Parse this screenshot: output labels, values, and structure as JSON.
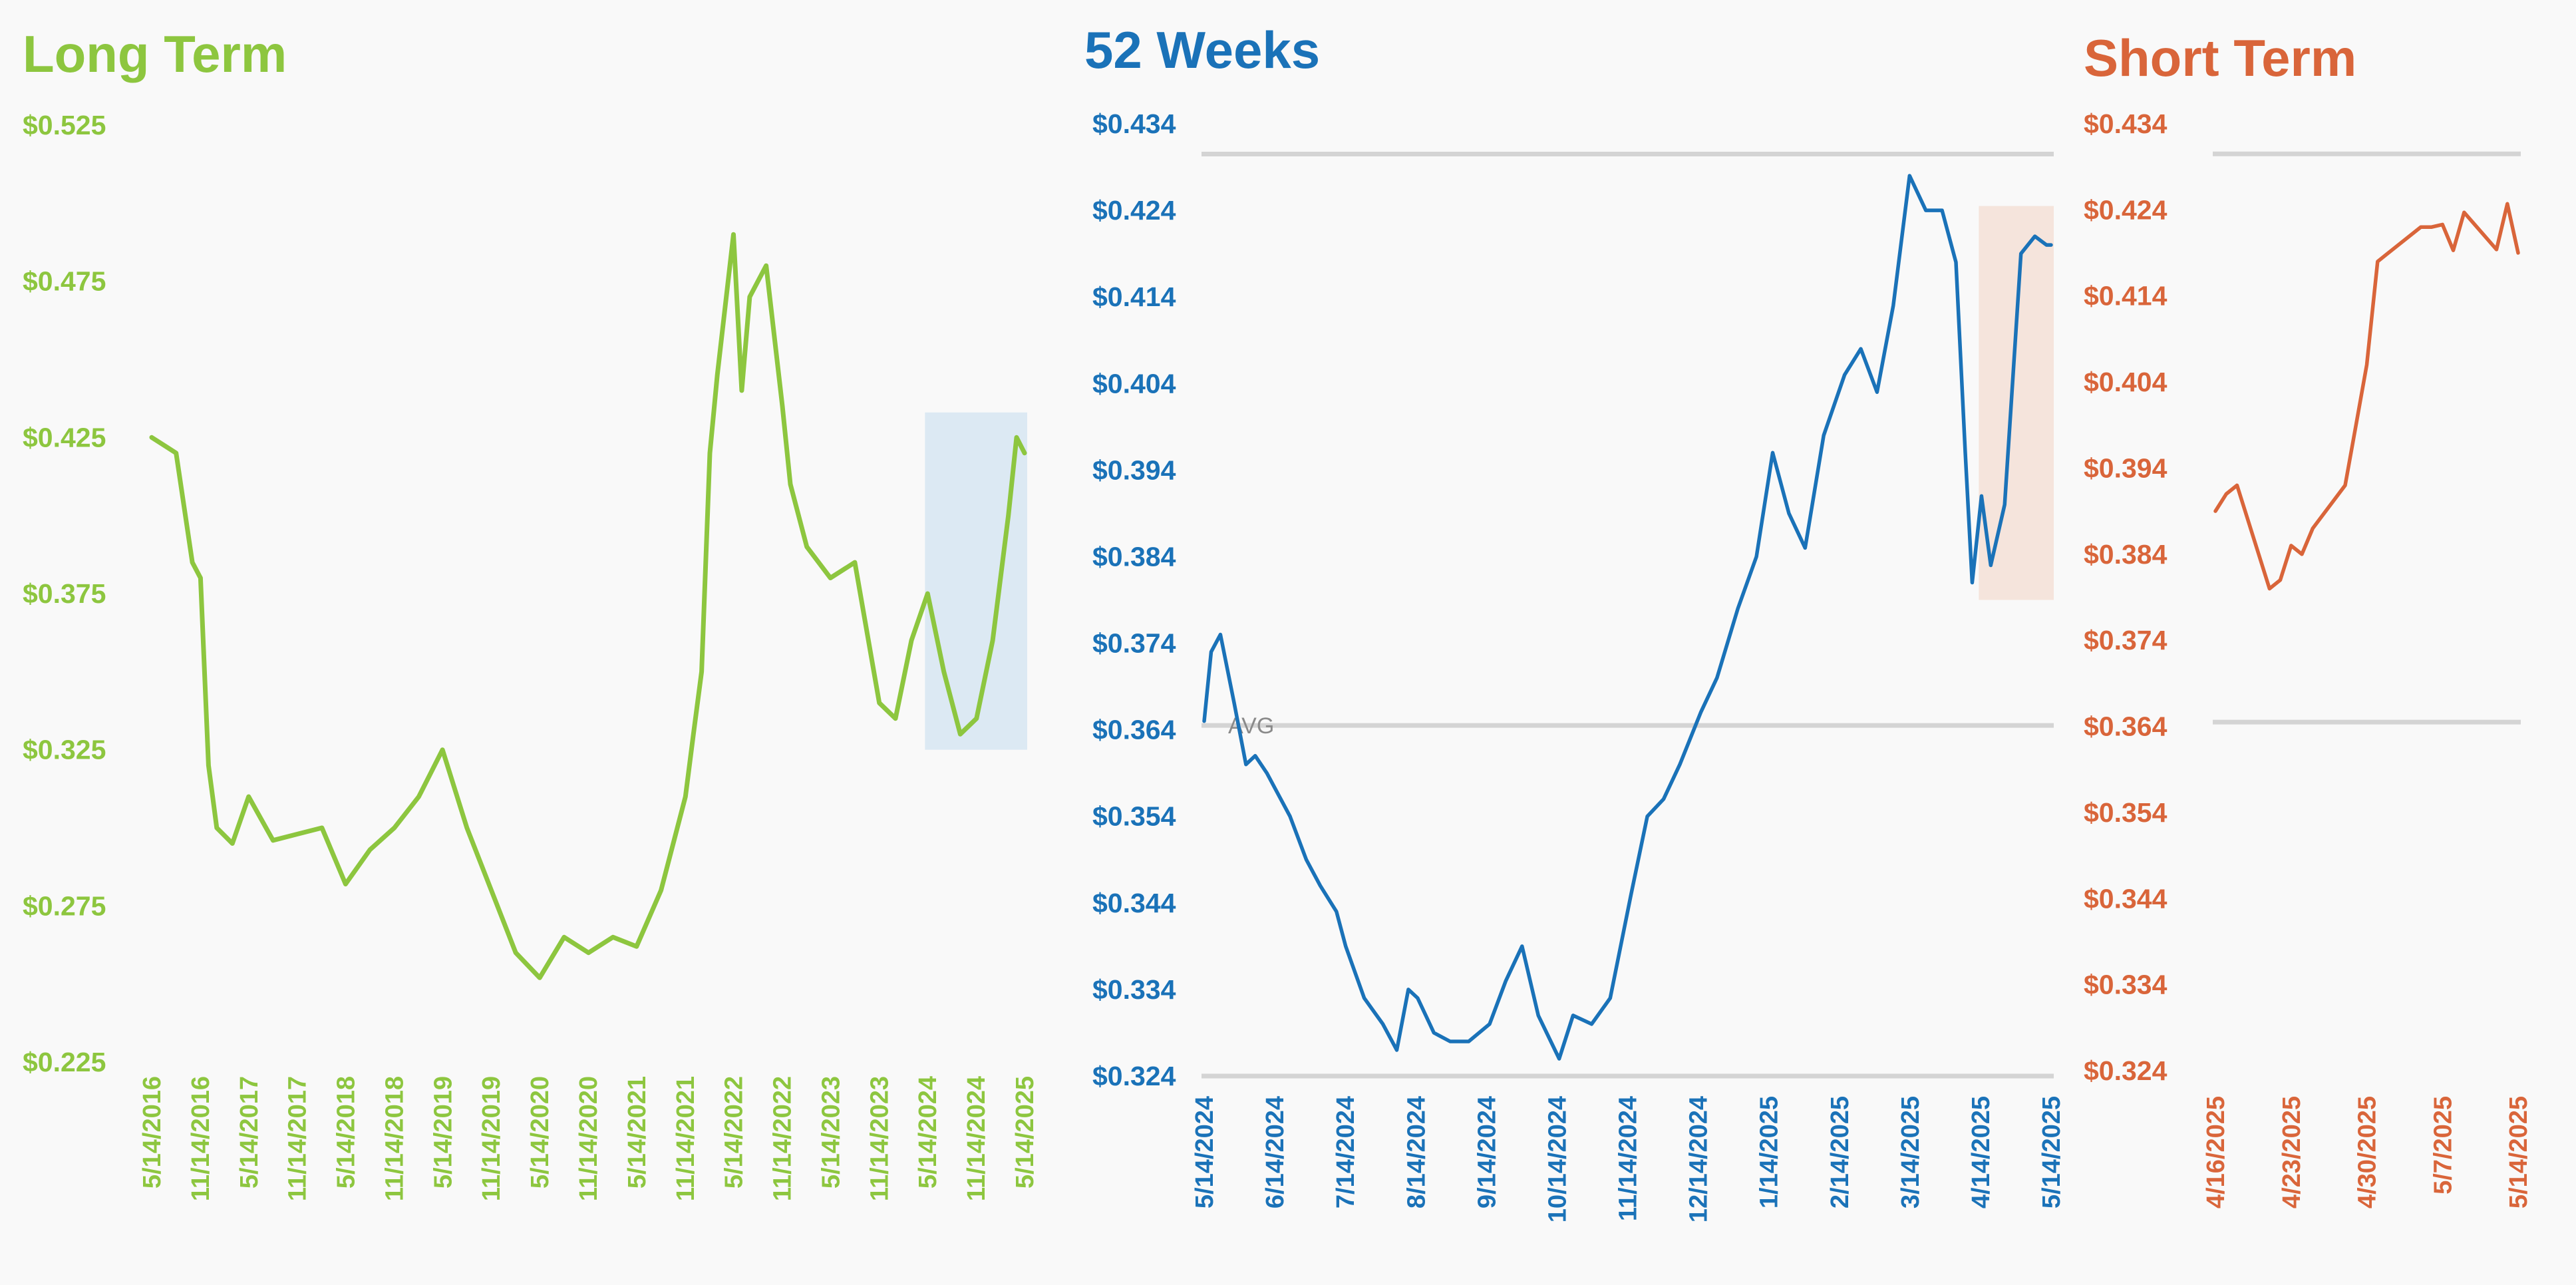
{
  "colors": {
    "long": "#8dc63f",
    "weeks": "#1a72b8",
    "short": "#d9653a",
    "long_highlight": "#dce9f3",
    "weeks_highlight": "#f5e4dc",
    "gridline": "#d4d4d4",
    "background": "#f9f9f9"
  },
  "chart_data": [
    {
      "type": "line",
      "title": "Long Term",
      "y_ticks": [
        "$0.525",
        "$0.475",
        "$0.425",
        "$0.375",
        "$0.325",
        "$0.275",
        "$0.225"
      ],
      "x_ticks": [
        "5/14/2016",
        "11/14/2016",
        "5/14/2017",
        "11/14/2017",
        "5/14/2018",
        "11/14/2018",
        "5/14/2019",
        "11/14/2019",
        "5/14/2020",
        "11/14/2020",
        "5/14/2021",
        "11/14/2021",
        "5/14/2022",
        "11/14/2022",
        "5/14/2023",
        "11/14/2023",
        "5/14/2024",
        "11/14/2024",
        "5/14/2025"
      ],
      "ylim": [
        0.225,
        0.525
      ],
      "highlight": {
        "x_range": [
          "5/14/2024",
          "5/14/2025"
        ],
        "y_range": [
          0.325,
          0.433
        ]
      },
      "series": [
        {
          "x": [
            "5/14/2016",
            "8/14/2016",
            "10/14/2016",
            "11/14/2016",
            "12/14/2016",
            "1/14/2017",
            "3/14/2017",
            "5/14/2017",
            "8/14/2017",
            "11/14/2017",
            "2/14/2018",
            "5/14/2018",
            "8/14/2018",
            "11/14/2018",
            "2/14/2019",
            "5/14/2019",
            "8/14/2019",
            "11/14/2019",
            "2/14/2020",
            "5/14/2020",
            "8/14/2020",
            "11/14/2020",
            "2/14/2021",
            "5/14/2021",
            "8/14/2021",
            "11/14/2021",
            "12/14/2021",
            "1/14/2022",
            "2/14/2022",
            "3/14/2022",
            "5/14/2022",
            "6/14/2022",
            "7/14/2022",
            "9/14/2022",
            "11/14/2022",
            "12/14/2022",
            "2/14/2023",
            "5/14/2023",
            "8/14/2023",
            "11/14/2023",
            "1/14/2024",
            "3/14/2024",
            "5/14/2024",
            "7/14/2024",
            "9/14/2024",
            "11/14/2024",
            "1/14/2025",
            "3/14/2025",
            "4/14/2025",
            "5/14/2025"
          ],
          "y": [
            0.425,
            0.42,
            0.385,
            0.38,
            0.32,
            0.3,
            0.295,
            0.31,
            0.296,
            0.298,
            0.3,
            0.282,
            0.293,
            0.3,
            0.31,
            0.325,
            0.3,
            0.28,
            0.26,
            0.252,
            0.265,
            0.26,
            0.265,
            0.262,
            0.28,
            0.31,
            0.33,
            0.35,
            0.42,
            0.445,
            0.49,
            0.44,
            0.47,
            0.48,
            0.435,
            0.41,
            0.39,
            0.38,
            0.385,
            0.34,
            0.335,
            0.36,
            0.375,
            0.35,
            0.33,
            0.335,
            0.36,
            0.4,
            0.425,
            0.42
          ]
        }
      ]
    },
    {
      "type": "line",
      "title": "52 Weeks",
      "y_ticks": [
        "$0.434",
        "$0.424",
        "$0.414",
        "$0.404",
        "$0.394",
        "$0.384",
        "$0.374",
        "$0.364",
        "$0.354",
        "$0.344",
        "$0.334",
        "$0.324"
      ],
      "x_ticks": [
        "5/14/2024",
        "6/14/2024",
        "7/14/2024",
        "8/14/2024",
        "9/14/2024",
        "10/14/2024",
        "11/14/2024",
        "12/14/2024",
        "1/14/2025",
        "2/14/2025",
        "3/14/2025",
        "4/14/2025",
        "5/14/2025"
      ],
      "ylim": [
        0.324,
        0.434
      ],
      "reference_lines": [
        {
          "label": "AVG",
          "y": 0.3645
        },
        {
          "label": "",
          "y": 0.4305
        }
      ],
      "highlight": {
        "x_range": [
          "4/14/2025",
          "5/14/2025"
        ],
        "y_range": [
          0.379,
          0.4245
        ]
      },
      "series": [
        {
          "x": [
            "5/14/2024",
            "5/17/2024",
            "5/21/2024",
            "5/27/2024",
            "6/1/2024",
            "6/5/2024",
            "6/10/2024",
            "6/14/2024",
            "6/20/2024",
            "6/27/2024",
            "7/3/2024",
            "7/10/2024",
            "7/14/2024",
            "7/22/2024",
            "7/30/2024",
            "8/5/2024",
            "8/10/2024",
            "8/14/2024",
            "8/21/2024",
            "8/28/2024",
            "9/5/2024",
            "9/14/2024",
            "9/21/2024",
            "9/28/2024",
            "10/5/2024",
            "10/14/2024",
            "10/20/2024",
            "10/28/2024",
            "11/5/2024",
            "11/14/2024",
            "11/21/2024",
            "11/28/2024",
            "12/5/2024",
            "12/14/2024",
            "12/21/2024",
            "12/30/2024",
            "1/7/2025",
            "1/14/2025",
            "1/21/2025",
            "1/28/2025",
            "2/5/2025",
            "2/14/2025",
            "2/21/2025",
            "2/28/2025",
            "3/7/2025",
            "3/14/2025",
            "3/21/2025",
            "3/28/2025",
            "4/3/2025",
            "4/7/2025",
            "4/10/2025",
            "4/14/2025",
            "4/18/2025",
            "4/24/2025",
            "5/1/2025",
            "5/7/2025",
            "5/12/2025",
            "5/14/2025"
          ],
          "y": [
            0.365,
            0.373,
            0.375,
            0.367,
            0.36,
            0.361,
            0.359,
            0.357,
            0.354,
            0.349,
            0.346,
            0.343,
            0.339,
            0.333,
            0.33,
            0.327,
            0.334,
            0.333,
            0.329,
            0.328,
            0.328,
            0.33,
            0.335,
            0.339,
            0.331,
            0.326,
            0.331,
            0.33,
            0.333,
            0.345,
            0.354,
            0.356,
            0.36,
            0.366,
            0.37,
            0.378,
            0.384,
            0.396,
            0.389,
            0.385,
            0.398,
            0.405,
            0.408,
            0.403,
            0.413,
            0.428,
            0.424,
            0.424,
            0.418,
            0.396,
            0.381,
            0.391,
            0.383,
            0.39,
            0.419,
            0.421,
            0.42,
            0.42
          ]
        }
      ]
    },
    {
      "type": "line",
      "title": "Short Term",
      "y_ticks": [
        "$0.434",
        "$0.424",
        "$0.414",
        "$0.404",
        "$0.394",
        "$0.384",
        "$0.374",
        "$0.364",
        "$0.354",
        "$0.344",
        "$0.334",
        "$0.324"
      ],
      "x_ticks": [
        "4/16/2025",
        "4/23/2025",
        "4/30/2025",
        "5/7/2025",
        "5/14/2025"
      ],
      "ylim": [
        0.324,
        0.434
      ],
      "reference_lines": [
        {
          "label": "",
          "y": 0.4305
        },
        {
          "label": "",
          "y": 0.3645
        }
      ],
      "series": [
        {
          "x": [
            "4/16/2025",
            "4/17/2025",
            "4/18/2025",
            "4/21/2025",
            "4/22/2025",
            "4/23/2025",
            "4/24/2025",
            "4/25/2025",
            "4/28/2025",
            "4/29/2025",
            "4/30/2025",
            "5/1/2025",
            "5/2/2025",
            "5/5/2025",
            "5/6/2025",
            "5/7/2025",
            "5/8/2025",
            "5/9/2025",
            "5/12/2025",
            "5/13/2025",
            "5/14/2025"
          ],
          "y": [
            0.389,
            0.391,
            0.392,
            0.38,
            0.381,
            0.385,
            0.384,
            0.387,
            0.392,
            0.399,
            0.406,
            0.418,
            0.419,
            0.422,
            0.422,
            0.4223,
            0.4193,
            0.4237,
            0.4194,
            0.4247,
            0.419
          ]
        }
      ]
    }
  ]
}
